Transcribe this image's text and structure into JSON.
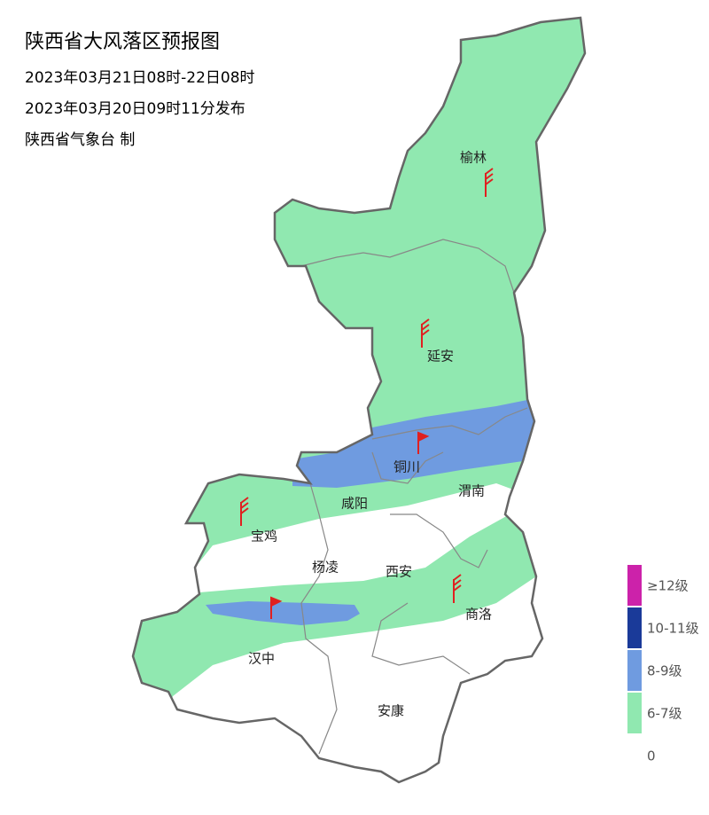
{
  "header": {
    "title": "陕西省大风落区预报图",
    "lines": [
      "2023年03月21日08时-22日08时",
      "2023年03月20日09时11分发布",
      "陕西省气象台 制"
    ]
  },
  "cities": [
    {
      "label": "榆林"
    },
    {
      "label": "延安"
    },
    {
      "label": "铜川"
    },
    {
      "label": "渭南"
    },
    {
      "label": "咸阳"
    },
    {
      "label": "宝鸡"
    },
    {
      "label": "杨凌"
    },
    {
      "label": "西安"
    },
    {
      "label": "商洛"
    },
    {
      "label": "汉中"
    },
    {
      "label": "安康"
    }
  ],
  "legend": [
    {
      "label": "≥12级",
      "color": "#cc22aa"
    },
    {
      "label": "10-11级",
      "color": "#1a3a99"
    },
    {
      "label": "8-9级",
      "color": "#6f9be0"
    },
    {
      "label": "6-7级",
      "color": "#90e8b0"
    },
    {
      "label": "0",
      "color": "#ffffff"
    }
  ]
}
